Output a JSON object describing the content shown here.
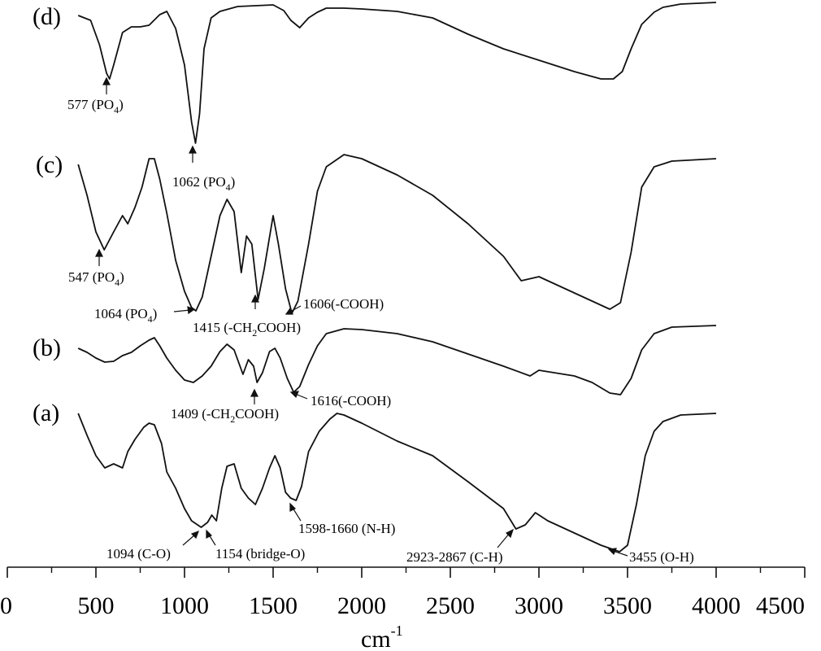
{
  "chart_data": {
    "type": "line",
    "title": "",
    "xlabel": {
      "base": "cm",
      "sup": "-1"
    },
    "ylabel": "",
    "xlim": [
      0,
      4500
    ],
    "x_ticks": [
      0,
      500,
      1000,
      1500,
      2000,
      2500,
      3000,
      3500,
      4000,
      4500
    ],
    "grid": false,
    "legend": "none",
    "line_color": "#111111",
    "series": [
      {
        "name": "(d)",
        "points": [
          [
            400,
            19
          ],
          [
            470,
            25
          ],
          [
            520,
            55
          ],
          [
            560,
            90
          ],
          [
            577,
            97
          ],
          [
            600,
            80
          ],
          [
            650,
            40
          ],
          [
            700,
            33
          ],
          [
            750,
            33
          ],
          [
            800,
            31
          ],
          [
            860,
            18
          ],
          [
            900,
            14
          ],
          [
            950,
            35
          ],
          [
            1000,
            80
          ],
          [
            1040,
            150
          ],
          [
            1062,
            176
          ],
          [
            1085,
            140
          ],
          [
            1110,
            60
          ],
          [
            1150,
            22
          ],
          [
            1200,
            14
          ],
          [
            1300,
            8
          ],
          [
            1400,
            7
          ],
          [
            1500,
            6
          ],
          [
            1560,
            13
          ],
          [
            1600,
            25
          ],
          [
            1650,
            34
          ],
          [
            1700,
            22
          ],
          [
            1750,
            15
          ],
          [
            1800,
            10
          ],
          [
            1900,
            10
          ],
          [
            2000,
            11
          ],
          [
            2200,
            14
          ],
          [
            2400,
            22
          ],
          [
            2600,
            42
          ],
          [
            2800,
            60
          ],
          [
            3000,
            74
          ],
          [
            3200,
            88
          ],
          [
            3350,
            97
          ],
          [
            3420,
            97
          ],
          [
            3470,
            88
          ],
          [
            3520,
            60
          ],
          [
            3580,
            30
          ],
          [
            3650,
            15
          ],
          [
            3700,
            9
          ],
          [
            3800,
            5
          ],
          [
            4000,
            3
          ]
        ]
      },
      {
        "name": "(c)",
        "points": [
          [
            400,
            202
          ],
          [
            450,
            240
          ],
          [
            500,
            285
          ],
          [
            547,
            307
          ],
          [
            600,
            285
          ],
          [
            650,
            265
          ],
          [
            680,
            275
          ],
          [
            720,
            255
          ],
          [
            760,
            230
          ],
          [
            800,
            195
          ],
          [
            830,
            195
          ],
          [
            860,
            220
          ],
          [
            900,
            262
          ],
          [
            950,
            320
          ],
          [
            1000,
            358
          ],
          [
            1040,
            378
          ],
          [
            1064,
            382
          ],
          [
            1100,
            365
          ],
          [
            1150,
            315
          ],
          [
            1200,
            265
          ],
          [
            1240,
            245
          ],
          [
            1280,
            260
          ],
          [
            1320,
            335
          ],
          [
            1350,
            290
          ],
          [
            1380,
            300
          ],
          [
            1415,
            368
          ],
          [
            1450,
            330
          ],
          [
            1500,
            265
          ],
          [
            1530,
            300
          ],
          [
            1570,
            355
          ],
          [
            1606,
            385
          ],
          [
            1640,
            370
          ],
          [
            1700,
            300
          ],
          [
            1750,
            235
          ],
          [
            1800,
            205
          ],
          [
            1900,
            190
          ],
          [
            2000,
            195
          ],
          [
            2200,
            215
          ],
          [
            2400,
            240
          ],
          [
            2600,
            275
          ],
          [
            2800,
            315
          ],
          [
            2900,
            345
          ],
          [
            3000,
            340
          ],
          [
            3200,
            360
          ],
          [
            3300,
            370
          ],
          [
            3400,
            380
          ],
          [
            3460,
            372
          ],
          [
            3520,
            310
          ],
          [
            3580,
            230
          ],
          [
            3650,
            205
          ],
          [
            3750,
            198
          ],
          [
            4000,
            195
          ]
        ]
      },
      {
        "name": "(b)",
        "points": [
          [
            400,
            428
          ],
          [
            450,
            433
          ],
          [
            500,
            440
          ],
          [
            550,
            445
          ],
          [
            600,
            444
          ],
          [
            650,
            437
          ],
          [
            700,
            433
          ],
          [
            750,
            425
          ],
          [
            800,
            418
          ],
          [
            830,
            415
          ],
          [
            860,
            425
          ],
          [
            900,
            440
          ],
          [
            950,
            455
          ],
          [
            1000,
            467
          ],
          [
            1050,
            470
          ],
          [
            1100,
            462
          ],
          [
            1150,
            450
          ],
          [
            1200,
            432
          ],
          [
            1240,
            423
          ],
          [
            1280,
            430
          ],
          [
            1330,
            460
          ],
          [
            1360,
            442
          ],
          [
            1390,
            450
          ],
          [
            1409,
            470
          ],
          [
            1440,
            458
          ],
          [
            1480,
            432
          ],
          [
            1510,
            428
          ],
          [
            1540,
            440
          ],
          [
            1580,
            465
          ],
          [
            1616,
            482
          ],
          [
            1650,
            475
          ],
          [
            1700,
            448
          ],
          [
            1750,
            425
          ],
          [
            1800,
            410
          ],
          [
            1900,
            404
          ],
          [
            2000,
            405
          ],
          [
            2200,
            410
          ],
          [
            2400,
            420
          ],
          [
            2600,
            435
          ],
          [
            2800,
            450
          ],
          [
            2950,
            462
          ],
          [
            3000,
            455
          ],
          [
            3200,
            462
          ],
          [
            3300,
            470
          ],
          [
            3400,
            483
          ],
          [
            3460,
            485
          ],
          [
            3520,
            465
          ],
          [
            3580,
            430
          ],
          [
            3650,
            410
          ],
          [
            3750,
            402
          ],
          [
            4000,
            400
          ]
        ]
      },
      {
        "name": "(a)",
        "points": [
          [
            400,
            508
          ],
          [
            450,
            535
          ],
          [
            500,
            560
          ],
          [
            550,
            575
          ],
          [
            600,
            570
          ],
          [
            650,
            575
          ],
          [
            680,
            555
          ],
          [
            720,
            540
          ],
          [
            770,
            525
          ],
          [
            800,
            520
          ],
          [
            830,
            522
          ],
          [
            870,
            545
          ],
          [
            900,
            580
          ],
          [
            950,
            600
          ],
          [
            1000,
            625
          ],
          [
            1040,
            640
          ],
          [
            1094,
            648
          ],
          [
            1130,
            642
          ],
          [
            1154,
            633
          ],
          [
            1180,
            640
          ],
          [
            1210,
            600
          ],
          [
            1240,
            573
          ],
          [
            1280,
            570
          ],
          [
            1320,
            600
          ],
          [
            1360,
            612
          ],
          [
            1400,
            620
          ],
          [
            1440,
            600
          ],
          [
            1480,
            575
          ],
          [
            1510,
            560
          ],
          [
            1540,
            575
          ],
          [
            1570,
            605
          ],
          [
            1598,
            612
          ],
          [
            1630,
            615
          ],
          [
            1660,
            598
          ],
          [
            1700,
            555
          ],
          [
            1760,
            530
          ],
          [
            1820,
            515
          ],
          [
            1860,
            508
          ],
          [
            1900,
            510
          ],
          [
            2000,
            520
          ],
          [
            2200,
            542
          ],
          [
            2400,
            560
          ],
          [
            2600,
            592
          ],
          [
            2800,
            625
          ],
          [
            2870,
            650
          ],
          [
            2923,
            645
          ],
          [
            2980,
            630
          ],
          [
            3050,
            640
          ],
          [
            3200,
            655
          ],
          [
            3350,
            670
          ],
          [
            3455,
            678
          ],
          [
            3500,
            670
          ],
          [
            3550,
            620
          ],
          [
            3600,
            560
          ],
          [
            3650,
            530
          ],
          [
            3700,
            518
          ],
          [
            3800,
            510
          ],
          [
            4000,
            508
          ]
        ]
      }
    ],
    "annotations": [
      {
        "id": "ann-577",
        "prefix": "577 (PO",
        "sub": "4",
        "suffix": ")"
      },
      {
        "id": "ann-1062",
        "prefix": "1062 (PO",
        "sub": "4",
        "suffix": ")"
      },
      {
        "id": "ann-547",
        "prefix": "547 (PO",
        "sub": "4",
        "suffix": ")"
      },
      {
        "id": "ann-1064",
        "prefix": "1064 (PO",
        "sub": "4",
        "suffix": ")"
      },
      {
        "id": "ann-1415",
        "prefix": "1415 (-CH",
        "sub": "2",
        "suffix": "COOH)"
      },
      {
        "id": "ann-1606",
        "prefix": "1606(-COOH)",
        "sub": "",
        "suffix": ""
      },
      {
        "id": "ann-1409",
        "prefix": "1409 (-CH",
        "sub": "2",
        "suffix": "COOH)"
      },
      {
        "id": "ann-1616",
        "prefix": "1616(-COOH)",
        "sub": "",
        "suffix": ""
      },
      {
        "id": "ann-1094",
        "prefix": "1094 (C-O)",
        "sub": "",
        "suffix": ""
      },
      {
        "id": "ann-1154",
        "prefix": "1154 (bridge-O)",
        "sub": "",
        "suffix": ""
      },
      {
        "id": "ann-1598",
        "prefix": "1598-1660 (N-H)",
        "sub": "",
        "suffix": ""
      },
      {
        "id": "ann-2923",
        "prefix": "2923-2867 (C-H)",
        "sub": "",
        "suffix": ""
      },
      {
        "id": "ann-3455",
        "prefix": "3455 (O-H)",
        "sub": "",
        "suffix": ""
      }
    ]
  }
}
